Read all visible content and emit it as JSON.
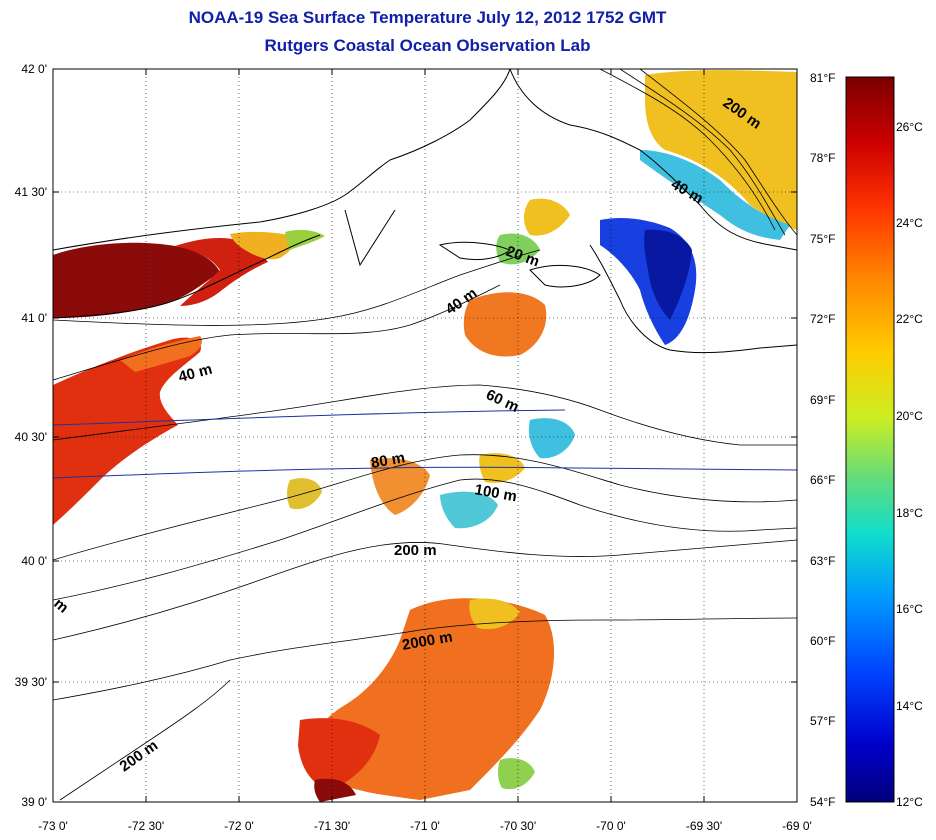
{
  "title": {
    "line1": "NOAA-19 Sea Surface Temperature July 12, 2012 1752 GMT",
    "line2": "Rutgers Coastal Ocean Observation Lab"
  },
  "map": {
    "x_ticks": [
      "-73 0'",
      "-72 30'",
      "-72 0'",
      "-71 30'",
      "-71 0'",
      "-70 30'",
      "-70 0'",
      "-69 30'",
      "-69 0'"
    ],
    "y_ticks": [
      "42 0'",
      "41 30'",
      "41 0'",
      "40 30'",
      "40 0'",
      "39 30'",
      "39 0'"
    ],
    "contour_labels": [
      "200 m",
      "40 m",
      "20 m",
      "40 m",
      "40 m",
      "60 m",
      "80 m",
      "100 m",
      "200 m",
      "2000 m",
      "200 m",
      "m"
    ]
  },
  "colorbar": {
    "fahrenheit": [
      "81°F",
      "78°F",
      "75°F",
      "72°F",
      "69°F",
      "66°F",
      "63°F",
      "60°F",
      "57°F",
      "54°F"
    ],
    "celsius": [
      "26°C",
      "24°C",
      "22°C",
      "20°C",
      "18°C",
      "16°C",
      "14°C",
      "12°C"
    ],
    "gradient": [
      "#7a0000",
      "#cc0000",
      "#ff3300",
      "#ff8800",
      "#ffcc00",
      "#ccee22",
      "#66dd77",
      "#11ddcc",
      "#0099ff",
      "#0044ff",
      "#0000cc",
      "#00007a"
    ]
  },
  "colors": {
    "title": "#1020a8",
    "warm_dark": "#8b0a0a",
    "warm": "#e03010",
    "orange": "#f07820",
    "yellow": "#f0c020",
    "cool": "#40c0e0",
    "blue": "#1840e0",
    "navy": "#0818a0"
  }
}
